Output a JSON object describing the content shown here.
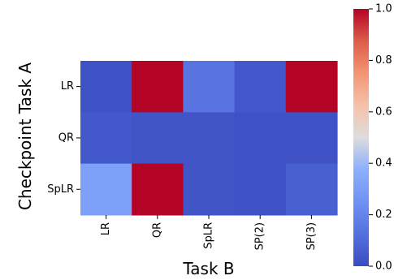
{
  "chart_data": {
    "type": "heatmap",
    "xlabel": "Task B",
    "ylabel": "Checkpoint Task A",
    "x_categories": [
      "LR",
      "QR",
      "SpLR",
      "SP(2)",
      "SP(3)"
    ],
    "y_categories": [
      "LR",
      "QR",
      "SpLR"
    ],
    "values": [
      [
        0.02,
        1.0,
        0.14,
        0.04,
        1.0
      ],
      [
        0.04,
        0.03,
        0.03,
        0.02,
        0.02
      ],
      [
        0.31,
        1.0,
        0.03,
        0.02,
        0.07
      ]
    ],
    "colorbar": {
      "range": [
        0.0,
        1.0
      ],
      "colormap": "coolwarm",
      "ticks": [
        "0.0",
        "0.2",
        "0.4",
        "0.6",
        "0.8",
        "1.0"
      ]
    }
  }
}
